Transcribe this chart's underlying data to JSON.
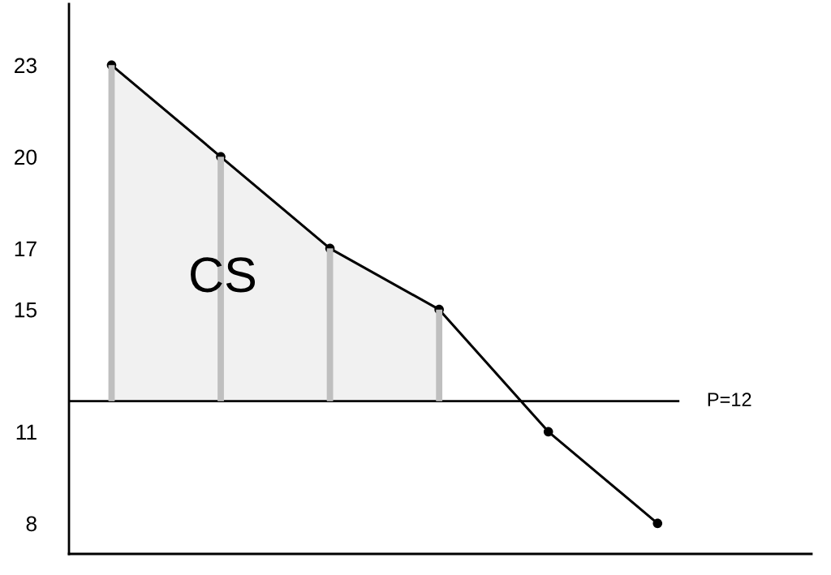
{
  "chart_data": {
    "type": "line",
    "categories": [
      null,
      null,
      null,
      null,
      null,
      null
    ],
    "series": [
      {
        "type": "bar",
        "color": "#bfbfbf",
        "values": [
          11,
          8,
          5,
          3,
          null,
          null
        ],
        "base": [
          12,
          12,
          12,
          12,
          null,
          null
        ]
      },
      {
        "color": "#000000",
        "values": [
          23,
          20,
          17,
          15,
          11,
          8
        ],
        "lower": [
          12,
          12,
          12,
          12,
          null,
          null
        ],
        "upper": [
          23,
          20,
          17,
          15,
          null,
          null
        ]
      }
    ],
    "ylim": [
      7,
      25
    ],
    "yticks": [
      8,
      11,
      15,
      17,
      20,
      23
    ],
    "marker": "circle",
    "line_style": "solid",
    "ref_lines": [
      {
        "axis": "y",
        "value": 12,
        "label": "P=12",
        "color": "#000000"
      }
    ],
    "annotations": [
      "CS"
    ]
  }
}
